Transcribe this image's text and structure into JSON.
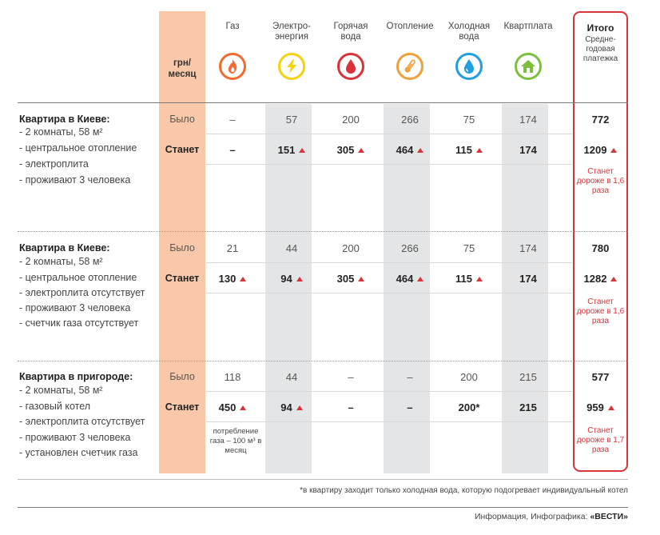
{
  "header": {
    "unit_label": "грн/ месяц",
    "columns": [
      {
        "label": "Газ",
        "icon": "flame-icon",
        "color": "#f26a2e"
      },
      {
        "label": "Электро- энергия",
        "icon": "lightning-icon",
        "color": "#f5d20a"
      },
      {
        "label": "Горячая вода",
        "icon": "drop-icon",
        "color": "#d9333a"
      },
      {
        "label": "Отопление",
        "icon": "thermometer-icon",
        "color": "#f0a03a"
      },
      {
        "label": "Холодная вода",
        "icon": "drop-icon",
        "color": "#1f9ee0"
      },
      {
        "label": "Квартплата",
        "icon": "house-icon",
        "color": "#7cbf3c"
      }
    ],
    "total_title": "Итого",
    "total_subtitle": "Средне- годовая платежка"
  },
  "row_labels": {
    "was": "Было",
    "will": "Станет"
  },
  "sections": [
    {
      "title": "Квартира в Киеве:",
      "lines": [
        "- 2 комнаты, 58 м²",
        "- центральное отопление",
        "- электроплита",
        "- проживают 3 человека"
      ],
      "was": [
        "–",
        "57",
        "200",
        "266",
        "75",
        "174"
      ],
      "will": [
        "–",
        "151",
        "305",
        "464",
        "115",
        "174"
      ],
      "will_up": [
        false,
        true,
        true,
        true,
        true,
        false
      ],
      "total_was": "772",
      "total_will": "1209",
      "total_note": "Станет дороже в 1,6 раза",
      "gas_note": ""
    },
    {
      "title": "Квартира в Киеве:",
      "lines": [
        "- 2 комнаты, 58 м²",
        "- центральное отопление",
        "- электроплита отсутствует",
        "- проживают 3 человека",
        "- счетчик газа отсутствует"
      ],
      "was": [
        "21",
        "44",
        "200",
        "266",
        "75",
        "174"
      ],
      "will": [
        "130",
        "94",
        "305",
        "464",
        "115",
        "174"
      ],
      "will_up": [
        true,
        true,
        true,
        true,
        true,
        false
      ],
      "total_was": "780",
      "total_will": "1282",
      "total_note": "Станет дороже в 1,6 раза",
      "gas_note": ""
    },
    {
      "title": "Квартира в пригороде:",
      "lines": [
        "- 2 комнаты, 58 м²",
        "- газовый котел",
        "- электроплита отсутствует",
        "- проживают 3 человека",
        "- установлен счетчик газа"
      ],
      "was": [
        "118",
        "44",
        "–",
        "–",
        "200",
        "215"
      ],
      "will": [
        "450",
        "94",
        "–",
        "–",
        "200*",
        "215"
      ],
      "will_up": [
        true,
        true,
        false,
        false,
        false,
        false
      ],
      "total_was": "577",
      "total_will": "959",
      "total_note": "Станет дороже в 1,7 раза",
      "gas_note": "потребление газа – 100 м³ в месяц"
    }
  ],
  "footnote": "*в квартиру заходит только холодная вода, которую подогревает индивидуальный котел",
  "credit": {
    "prefix": "Информация, Инфографика:",
    "brand": "«ВЕСТИ»"
  }
}
